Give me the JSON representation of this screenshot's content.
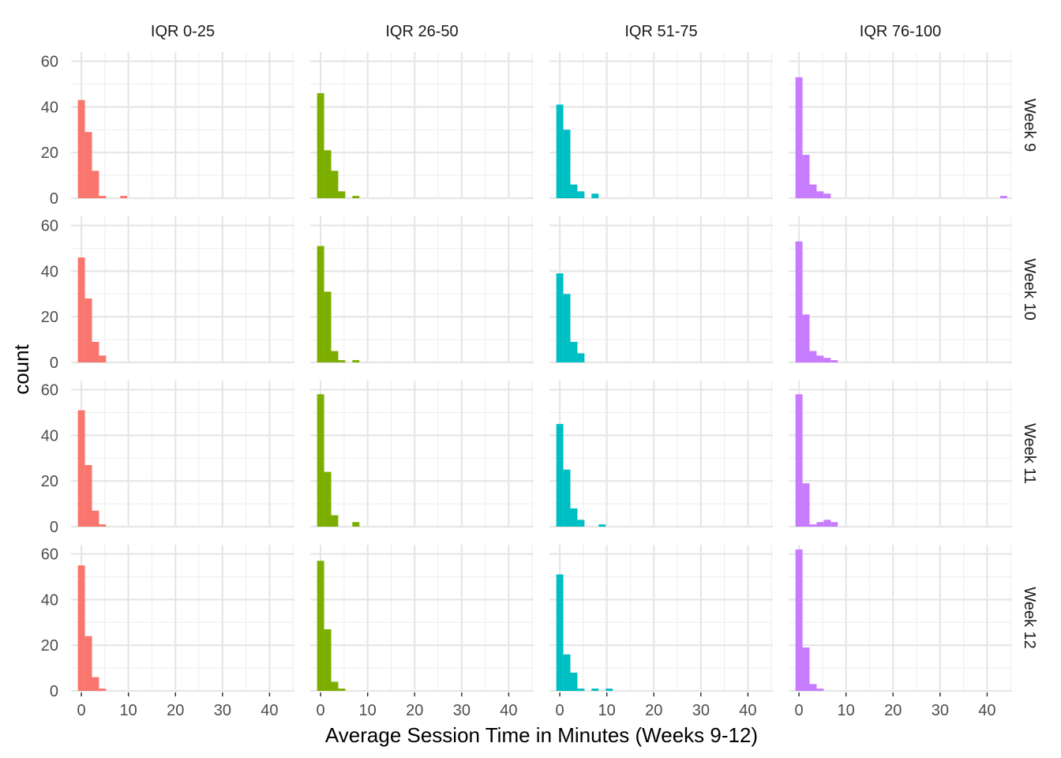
{
  "chart_data": {
    "type": "bar",
    "subtype": "faceted-histogram",
    "xlabel": "Average Session Time in Minutes (Weeks 9-12)",
    "ylabel": "count",
    "xlim": [
      -2.2,
      45.3
    ],
    "ylim": [
      0,
      64
    ],
    "x_ticks": [
      0,
      10,
      20,
      30,
      40
    ],
    "y_ticks": [
      0,
      20,
      40,
      60
    ],
    "bin_width": 1.5,
    "grid": true,
    "legend": "none",
    "columns": [
      {
        "label": "IQR 0-25",
        "color": "#F8766D"
      },
      {
        "label": "IQR 26-50",
        "color": "#7CAE00"
      },
      {
        "label": "IQR 51-75",
        "color": "#00BFC4"
      },
      {
        "label": "IQR 76-100",
        "color": "#C77CFF"
      }
    ],
    "rows": [
      "Week 9",
      "Week 10",
      "Week 11",
      "Week 12"
    ],
    "bin_starts": [
      -0.75,
      0.75,
      2.25,
      3.75,
      5.25,
      6.75,
      8.25,
      9.75,
      11.25,
      12.75,
      14.25,
      15.75,
      17.25,
      18.75,
      20.25,
      21.75,
      23.25,
      24.75,
      26.25,
      27.75,
      29.25,
      30.75,
      32.25,
      33.75,
      35.25,
      36.75,
      38.25,
      39.75,
      41.25,
      42.75
    ],
    "counts": [
      [
        [
          43,
          29,
          12,
          1,
          0,
          0,
          1,
          0,
          0,
          0,
          0,
          0,
          0,
          0,
          0,
          0,
          0,
          0,
          0,
          0,
          0,
          0,
          0,
          0,
          0,
          0,
          0,
          0,
          0,
          0
        ],
        [
          46,
          21,
          12,
          3,
          0,
          1,
          0,
          0,
          0,
          0,
          0,
          0,
          0,
          0,
          0,
          0,
          0,
          0,
          0,
          0,
          0,
          0,
          0,
          0,
          0,
          0,
          0,
          0,
          0,
          0
        ],
        [
          41,
          30,
          6,
          3,
          0,
          2,
          0,
          0,
          0,
          0,
          0,
          0,
          0,
          0,
          0,
          0,
          0,
          0,
          0,
          0,
          0,
          0,
          0,
          0,
          0,
          0,
          0,
          0,
          0,
          0
        ],
        [
          53,
          19,
          6,
          3,
          2,
          0,
          0,
          0,
          0,
          0,
          0,
          0,
          0,
          0,
          0,
          0,
          0,
          0,
          0,
          0,
          0,
          0,
          0,
          0,
          0,
          0,
          0,
          0,
          0,
          1
        ]
      ],
      [
        [
          46,
          28,
          9,
          3,
          0,
          0,
          0,
          0,
          0,
          0,
          0,
          0,
          0,
          0,
          0,
          0,
          0,
          0,
          0,
          0,
          0,
          0,
          0,
          0,
          0,
          0,
          0,
          0,
          0,
          0
        ],
        [
          51,
          31,
          5,
          1,
          0,
          1,
          0,
          0,
          0,
          0,
          0,
          0,
          0,
          0,
          0,
          0,
          0,
          0,
          0,
          0,
          0,
          0,
          0,
          0,
          0,
          0,
          0,
          0,
          0,
          0
        ],
        [
          39,
          30,
          9,
          4,
          0,
          0,
          0,
          0,
          0,
          0,
          0,
          0,
          0,
          0,
          0,
          0,
          0,
          0,
          0,
          0,
          0,
          0,
          0,
          0,
          0,
          0,
          0,
          0,
          0,
          0
        ],
        [
          53,
          21,
          5,
          3,
          2,
          1,
          0,
          0,
          0,
          0,
          0,
          0,
          0,
          0,
          0,
          0,
          0,
          0,
          0,
          0,
          0,
          0,
          0,
          0,
          0,
          0,
          0,
          0,
          0,
          0
        ]
      ],
      [
        [
          51,
          27,
          7,
          1,
          0,
          0,
          0,
          0,
          0,
          0,
          0,
          0,
          0,
          0,
          0,
          0,
          0,
          0,
          0,
          0,
          0,
          0,
          0,
          0,
          0,
          0,
          0,
          0,
          0,
          0
        ],
        [
          58,
          24,
          5,
          0,
          0,
          2,
          0,
          0,
          0,
          0,
          0,
          0,
          0,
          0,
          0,
          0,
          0,
          0,
          0,
          0,
          0,
          0,
          0,
          0,
          0,
          0,
          0,
          0,
          0,
          0
        ],
        [
          45,
          25,
          8,
          3,
          0,
          0,
          1,
          0,
          0,
          0,
          0,
          0,
          0,
          0,
          0,
          0,
          0,
          0,
          0,
          0,
          0,
          0,
          0,
          0,
          0,
          0,
          0,
          0,
          0,
          0
        ],
        [
          58,
          19,
          1,
          2,
          3,
          2,
          0,
          0,
          0,
          0,
          0,
          0,
          0,
          0,
          0,
          0,
          0,
          0,
          0,
          0,
          0,
          0,
          0,
          0,
          0,
          0,
          0,
          0,
          0,
          0
        ]
      ],
      [
        [
          55,
          24,
          6,
          1,
          0,
          0,
          0,
          0,
          0,
          0,
          0,
          0,
          0,
          0,
          0,
          0,
          0,
          0,
          0,
          0,
          0,
          0,
          0,
          0,
          0,
          0,
          0,
          0,
          0,
          0
        ],
        [
          57,
          27,
          4,
          1,
          0,
          0,
          0,
          0,
          0,
          0,
          0,
          0,
          0,
          0,
          0,
          0,
          0,
          0,
          0,
          0,
          0,
          0,
          0,
          0,
          0,
          0,
          0,
          0,
          0,
          0
        ],
        [
          51,
          16,
          8,
          1,
          0,
          1,
          0,
          1,
          0,
          0,
          0,
          0,
          0,
          0,
          0,
          0,
          0,
          0,
          0,
          0,
          0,
          0,
          0,
          0,
          0,
          0,
          0,
          0,
          0,
          0
        ],
        [
          62,
          19,
          3,
          1,
          0,
          0,
          0,
          0,
          0,
          0,
          0,
          0,
          0,
          0,
          0,
          0,
          0,
          0,
          0,
          0,
          0,
          0,
          0,
          0,
          0,
          0,
          0,
          0,
          0,
          0
        ]
      ]
    ]
  }
}
